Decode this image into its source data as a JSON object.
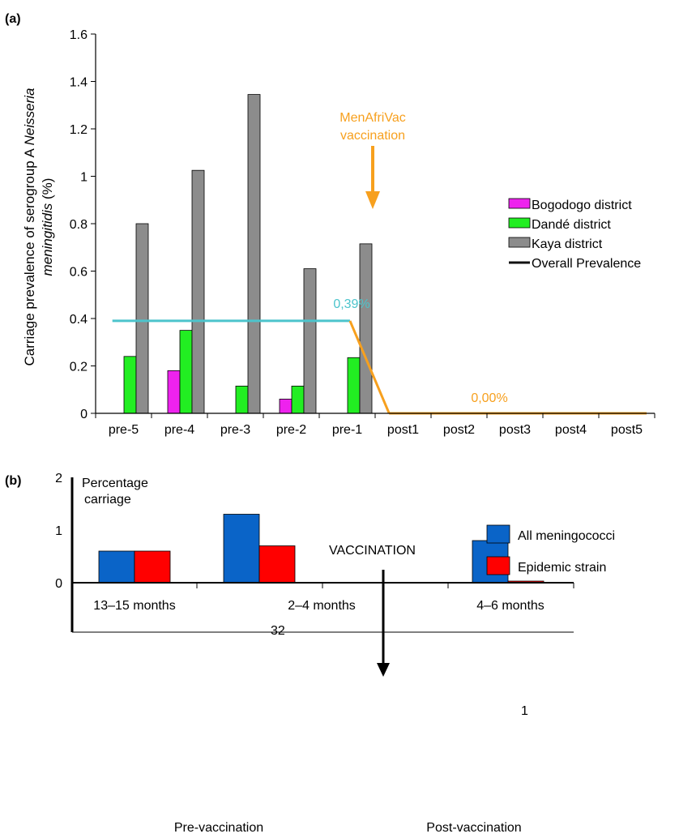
{
  "chart_data": [
    {
      "panel": "(a)",
      "type": "bar",
      "ylabel_line1": "Carriage prevalence of serogroup A ",
      "ylabel_italic1": "Neisseria",
      "ylabel_italic2": "meningitidis",
      "ylabel_line2_suffix": " (%)",
      "ylim": [
        0,
        1.6
      ],
      "yticks": [
        {
          "value": 0,
          "label": "0"
        },
        {
          "value": 0.2,
          "label": "0.2"
        },
        {
          "value": 0.4,
          "label": "0.4"
        },
        {
          "value": 0.6,
          "label": "0.6"
        },
        {
          "value": 0.8,
          "label": "0.8"
        },
        {
          "value": 1,
          "label": "1"
        },
        {
          "value": 1.2,
          "label": "1.2"
        },
        {
          "value": 1.4,
          "label": "1.4"
        },
        {
          "value": 1.6,
          "label": "1.6"
        }
      ],
      "categories": [
        "pre-5",
        "pre-4",
        "pre-3",
        "pre-2",
        "pre-1",
        "post1",
        "post2",
        "post3",
        "post4",
        "post5"
      ],
      "series": [
        {
          "name": "Bogodogo district",
          "color": "#ee22ee",
          "values": [
            0,
            0.18,
            0,
            0.06,
            0,
            0,
            0,
            0,
            0,
            0
          ]
        },
        {
          "name": "Dandé district",
          "color": "#22ee22",
          "values": [
            0.24,
            0.35,
            0.115,
            0.115,
            0.235,
            0,
            0,
            0,
            0,
            0
          ]
        },
        {
          "name": "Kaya district",
          "color": "#8c8c8c",
          "values": [
            0.8,
            1.025,
            1.345,
            0.61,
            0.715,
            0,
            0,
            0,
            0,
            0
          ]
        }
      ],
      "overall_legend": "Overall Prevalence",
      "pre_line": {
        "value": 0.39,
        "label": "0,39%",
        "color": "#4cc4cc"
      },
      "post_line": {
        "value": 0.0,
        "label": "0,00%",
        "color": "#f7a01e"
      },
      "vaccination_annotation": {
        "line1": "MenAfriVac",
        "line2": "vaccination",
        "color": "#f7a01e"
      },
      "legend_position": "right"
    },
    {
      "panel": "(b)",
      "type": "bar",
      "ylabel_line1": "Percentage",
      "ylabel_line2": "carriage",
      "ylim": [
        0,
        2
      ],
      "yticks": [
        {
          "value": 0,
          "label": "0"
        },
        {
          "value": 1,
          "label": "1"
        },
        {
          "value": 2,
          "label": "2"
        }
      ],
      "categories": [
        "13–15 months",
        "2–4 months",
        "4–6 months"
      ],
      "group_labels": [
        "Pre-vaccination",
        "Post-vaccination"
      ],
      "series": [
        {
          "name": "All meningococci",
          "color": "#0a64c8",
          "values": [
            0.6,
            1.3,
            0.8
          ]
        },
        {
          "name": "Epidemic strain",
          "color": "#ff0000",
          "values": [
            0.6,
            0.7,
            0.01
          ]
        }
      ],
      "bar_annotations": [
        "32",
        "1"
      ],
      "vaccination_label": "VACCINATION",
      "legend_position": "top-right"
    }
  ]
}
